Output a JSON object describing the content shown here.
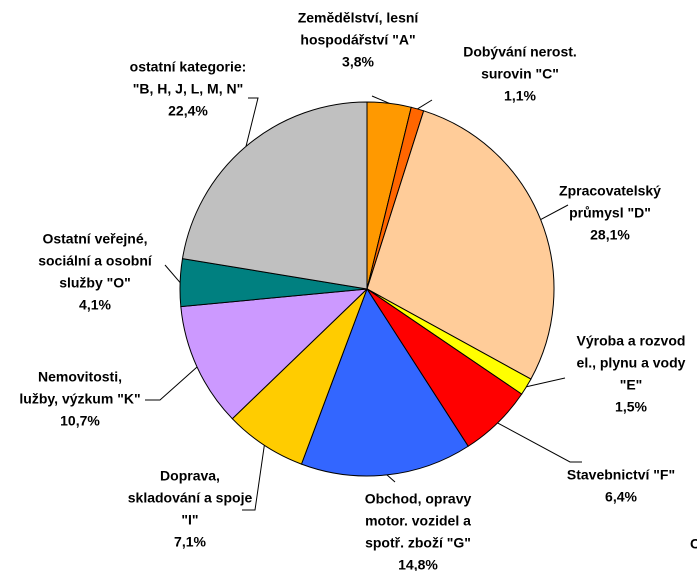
{
  "chart_data": {
    "type": "pie",
    "categories": [
      [
        "Zemědělství, lesní",
        "hospodářství \"A\""
      ],
      [
        "Dobývání nerost.",
        "surovin \"C\""
      ],
      [
        "Zpracovatelský",
        "průmysl \"D\""
      ],
      [
        "Výroba a rozvod",
        "el., plynu a vody",
        "\"E\""
      ],
      [
        "Stavebnictví \"F\""
      ],
      [
        "Obchod, opravy",
        "motor. vozidel a",
        "spotř. zboží \"G\""
      ],
      [
        "Doprava,",
        "skladování a spoje",
        "\"I\""
      ],
      [
        "Nemovitosti,",
        "lužby, výzkum \"K\""
      ],
      [
        "Ostatní veřejné,",
        "sociální a osobní",
        "služby \"O\""
      ],
      [
        "ostatní kategorie:",
        "\"B, H, J, L, M, N\""
      ]
    ],
    "values": [
      3.8,
      1.1,
      28.1,
      1.5,
      6.4,
      14.8,
      7.1,
      10.7,
      4.1,
      22.4
    ],
    "value_labels": [
      "3,8%",
      "1,1%",
      "28,1%",
      "1,5%",
      "6,4%",
      "14,8%",
      "7,1%",
      "10,7%",
      "4,1%",
      "22,4%"
    ],
    "colors": [
      "#ff9900",
      "#ff6600",
      "#ffcc99",
      "#ffff00",
      "#ff0000",
      "#3366ff",
      "#ffcc00",
      "#cc99ff",
      "#008080",
      "#c0c0c0"
    ],
    "footnote": "C"
  }
}
